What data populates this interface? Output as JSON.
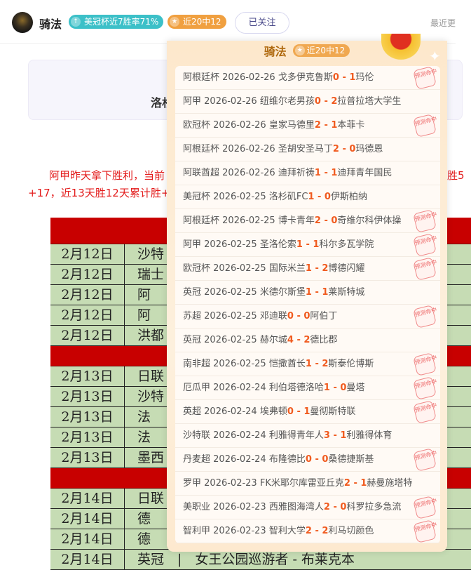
{
  "header": {
    "username": "骑法",
    "badge_streak": "美冠杯近7胜率71%",
    "badge_record": "近20中12",
    "follow_label": "已关注",
    "recent_label": "最近更"
  },
  "card": {
    "title_partial": "洛杉"
  },
  "paragraph": {
    "line1": "阿甲昨天拿下胜利，当前",
    "line2": "+17，近13天胜12天累计胜+",
    "line1_right": "胜5"
  },
  "table": {
    "groups": [
      {
        "rows": [
          [
            "2月12日",
            "沙特"
          ],
          [
            "2月12日",
            "瑞士"
          ],
          [
            "2月12日",
            "阿"
          ],
          [
            "2月12日",
            "阿"
          ],
          [
            "2月12日",
            "洪都"
          ]
        ]
      },
      {
        "rows": [
          [
            "2月13日",
            "日联"
          ],
          [
            "2月13日",
            "沙特"
          ],
          [
            "2月13日",
            "法"
          ],
          [
            "2月13日",
            "法"
          ],
          [
            "2月13日",
            "墨西"
          ]
        ]
      },
      {
        "rows": [
          [
            "2月14日",
            "日联"
          ],
          [
            "2月14日",
            "德"
          ],
          [
            "2月14日",
            "德"
          ],
          [
            "2月14日",
            "英冠　|　女王公园巡游者 - 布莱克本"
          ]
        ]
      }
    ]
  },
  "popup": {
    "name": "骑法",
    "badge": "近20中12",
    "stamp_text": "预测命中",
    "records": [
      {
        "league": "阿根廷杯",
        "date": "2026-02-26",
        "home": "戈多伊克鲁斯",
        "hs": "0",
        "as": "1",
        "away": "玛伦",
        "hit": true
      },
      {
        "league": "阿甲",
        "date": "2026-02-26",
        "home": "纽维尔老男孩",
        "hs": "0",
        "as": "2",
        "away": "拉普拉塔大学生",
        "hit": false
      },
      {
        "league": "欧冠杯",
        "date": "2026-02-26",
        "home": "皇家马德里",
        "hs": "2",
        "as": "1",
        "away": "本菲卡",
        "hit": true
      },
      {
        "league": "阿根廷杯",
        "date": "2026-02-26",
        "home": "圣胡安圣马丁",
        "hs": "2",
        "as": "0",
        "away": "玛德恩",
        "hit": false
      },
      {
        "league": "阿联酋超",
        "date": "2026-02-26",
        "home": "迪拜祈祷",
        "hs": "1",
        "as": "1",
        "away": "迪拜青年国民",
        "hit": false
      },
      {
        "league": "美冠杯",
        "date": "2026-02-25",
        "home": "洛杉矶FC",
        "hs": "1",
        "as": "0",
        "away": "伊斯柏纳",
        "hit": false
      },
      {
        "league": "阿根廷杯",
        "date": "2026-02-25",
        "home": "博卡青年",
        "hs": "2",
        "as": "0",
        "away": "奇维尔科伊体操",
        "hit": true
      },
      {
        "league": "阿甲",
        "date": "2026-02-25",
        "home": "圣洛伦索",
        "hs": "1",
        "as": "1",
        "away": "科尔多瓦学院",
        "hit": true
      },
      {
        "league": "欧冠杯",
        "date": "2026-02-25",
        "home": "国际米兰",
        "hs": "1",
        "as": "2",
        "away": "博德闪耀",
        "hit": true
      },
      {
        "league": "英冠",
        "date": "2026-02-25",
        "home": "米德尔斯堡",
        "hs": "1",
        "as": "1",
        "away": "莱斯特城",
        "hit": false
      },
      {
        "league": "苏超",
        "date": "2026-02-25",
        "home": "邓迪联",
        "hs": "0",
        "as": "0",
        "away": "阿伯丁",
        "hit": true
      },
      {
        "league": "英冠",
        "date": "2026-02-25",
        "home": "赫尔城",
        "hs": "4",
        "as": "2",
        "away": "德比郡",
        "hit": false
      },
      {
        "league": "南非超",
        "date": "2026-02-25",
        "home": "恺撒酋长",
        "hs": "1",
        "as": "2",
        "away": "斯泰伦博斯",
        "hit": true
      },
      {
        "league": "厄瓜甲",
        "date": "2026-02-24",
        "home": "利伯塔德洛哈",
        "hs": "1",
        "as": "0",
        "away": "曼塔",
        "hit": true
      },
      {
        "league": "英超",
        "date": "2026-02-24",
        "home": "埃弗顿",
        "hs": "0",
        "as": "1",
        "away": "曼彻斯特联",
        "hit": true
      },
      {
        "league": "沙特联",
        "date": "2026-02-24",
        "home": "利雅得青年人",
        "hs": "3",
        "as": "1",
        "away": "利雅得体育",
        "hit": false
      },
      {
        "league": "丹麦超",
        "date": "2026-02-24",
        "home": "布隆德比",
        "hs": "0",
        "as": "0",
        "away": "桑德捷斯基",
        "hit": true
      },
      {
        "league": "罗甲",
        "date": "2026-02-23",
        "home": "FK米耶尔库雷亚丘克",
        "hs": "2",
        "as": "1",
        "away": "赫曼施塔特",
        "hit": false
      },
      {
        "league": "美职业",
        "date": "2026-02-23",
        "home": "西雅图海湾人",
        "hs": "2",
        "as": "0",
        "away": "科罗拉多急流",
        "hit": true
      },
      {
        "league": "智利甲",
        "date": "2026-02-23",
        "home": "智利大学",
        "hs": "2",
        "as": "2",
        "away": "利马切颜色",
        "hit": true
      }
    ]
  },
  "colors": {
    "score": "#f05a1e",
    "popup_bg": "#fde8cc",
    "table_red": "#c80000",
    "table_green": "#c6dcb4",
    "paragraph": "#e31c1c"
  }
}
